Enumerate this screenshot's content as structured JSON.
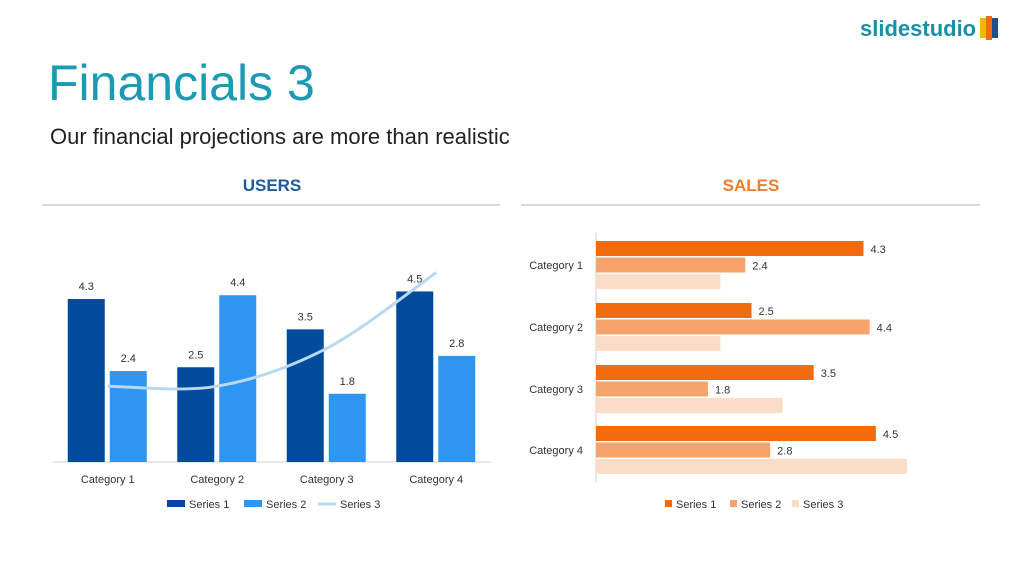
{
  "header": {
    "title": "Financials 3",
    "subtitle": "Our financial projections are more than realistic",
    "logo_text": "slidestudio"
  },
  "colors": {
    "title": "#1b9ab3",
    "users": "#1f5a9a",
    "sales": "#ed7d31"
  },
  "chart_data": [
    {
      "type": "bar",
      "title": "USERS",
      "orientation": "vertical",
      "categories": [
        "Category 1",
        "Category 2",
        "Category 3",
        "Category 4"
      ],
      "series": [
        {
          "name": "Series 1",
          "kind": "bar",
          "values": [
            4.3,
            2.5,
            3.5,
            4.5
          ],
          "color": "#004b9b",
          "labels": [
            "4.3",
            "2.5",
            "3.5",
            "4.5"
          ]
        },
        {
          "name": "Series 2",
          "kind": "bar",
          "values": [
            2.4,
            4.4,
            1.8,
            2.8
          ],
          "color": "#2e96f0",
          "labels": [
            "2.4",
            "4.4",
            "1.8",
            "2.8"
          ]
        },
        {
          "name": "Series 3",
          "kind": "line",
          "values": [
            2,
            2,
            3,
            5
          ],
          "color": "#b9d9f1"
        }
      ],
      "ylim": [
        0,
        5
      ],
      "grid": false,
      "legend": "bottom"
    },
    {
      "type": "bar",
      "title": "SALES",
      "orientation": "horizontal",
      "categories": [
        "Category 1",
        "Category 2",
        "Category 3",
        "Category 4"
      ],
      "series": [
        {
          "name": "Series 1",
          "values": [
            4.3,
            2.5,
            3.5,
            4.5
          ],
          "color": "#f26b0f",
          "labels": [
            "4.3",
            "2.5",
            "3.5",
            "4.5"
          ]
        },
        {
          "name": "Series 2",
          "values": [
            2.4,
            4.4,
            1.8,
            2.8
          ],
          "color": "#f7a46a",
          "labels": [
            "2.4",
            "4.4",
            "1.8",
            "2.8"
          ]
        },
        {
          "name": "Series 3",
          "values": [
            2,
            2,
            3,
            5
          ],
          "color": "#fbdcc6"
        }
      ],
      "xlim": [
        0,
        5
      ],
      "grid": false,
      "legend": "bottom"
    }
  ]
}
